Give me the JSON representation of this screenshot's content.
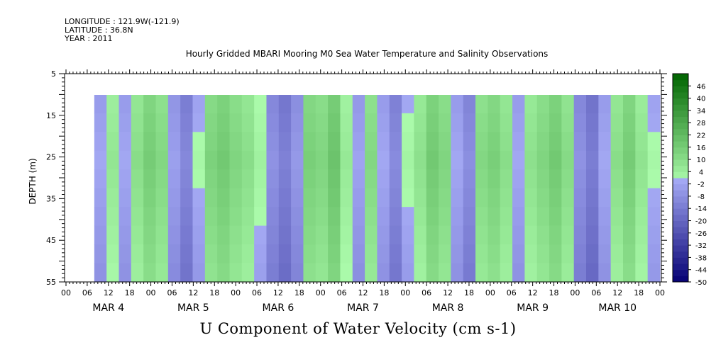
{
  "header": {
    "longitude": "LONGITUDE : 121.9W(-121.9)",
    "latitude": "LATITUDE : 36.8N",
    "year": "YEAR : 2011"
  },
  "chart_data": {
    "type": "heatmap",
    "title": "Hourly Gridded MBARI Mooring M0 Sea Water Temperature and Salinity Observations",
    "bottom_title": "U Component of Water Velocity (cm s-1)",
    "ylabel": "DEPTH (m)",
    "y_ticks": [
      "5",
      "15",
      "25",
      "35",
      "45",
      "55"
    ],
    "ylim": [
      5,
      55
    ],
    "y_inverted": true,
    "data_depth_range": [
      10,
      55
    ],
    "x_hour_ticks": [
      "00",
      "06",
      "12",
      "18",
      "00",
      "06",
      "12",
      "18",
      "00",
      "06",
      "12",
      "18",
      "00",
      "06",
      "12",
      "18",
      "00",
      "06",
      "12",
      "18",
      "00",
      "06",
      "12",
      "18",
      "00",
      "06",
      "12",
      "18",
      "00"
    ],
    "x_day_labels": [
      "MAR 4",
      "MAR 5",
      "MAR 6",
      "MAR 7",
      "MAR 8",
      "MAR 9",
      "MAR 10"
    ],
    "data_start_hour": 8,
    "colorbar": {
      "ticks": [
        "46",
        "40",
        "34",
        "28",
        "22",
        "16",
        "10",
        "4",
        "-2",
        "-8",
        "-14",
        "-20",
        "-26",
        "-32",
        "-38",
        "-44",
        "-50"
      ],
      "range": [
        -50,
        52
      ]
    },
    "columns_u": [
      -4,
      4,
      -4,
      7,
      13,
      9,
      -6,
      -13,
      -2,
      11,
      14,
      10,
      7,
      0,
      -10,
      -15,
      -8,
      12,
      10,
      16,
      3,
      -5,
      9,
      -4,
      -12,
      -1,
      6,
      14,
      10,
      -4,
      -11,
      9,
      12,
      7,
      -4,
      6,
      10,
      14,
      8,
      -10,
      -16,
      -4,
      7,
      13,
      5,
      -2
    ],
    "depth_bias_u": [
      0,
      1,
      2,
      3,
      2,
      1,
      0,
      -1,
      -2,
      -3
    ]
  }
}
